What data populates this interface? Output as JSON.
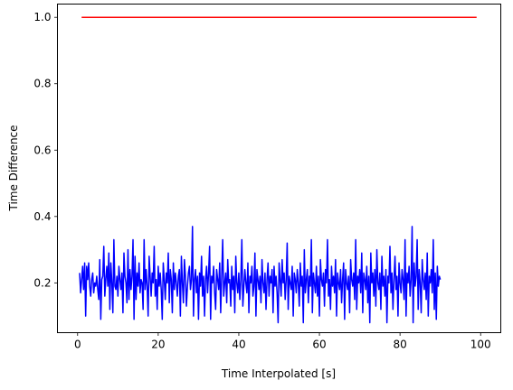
{
  "chart_data": {
    "type": "line",
    "title": "",
    "xlabel": "Time Interpolated [s]",
    "ylabel": "Time Difference",
    "xlim": [
      -5,
      105
    ],
    "ylim": [
      0.05,
      1.04
    ],
    "xticks": [
      0,
      20,
      40,
      60,
      80,
      100
    ],
    "xtick_labels": [
      "0",
      "20",
      "40",
      "60",
      "80",
      "100"
    ],
    "yticks": [
      0.2,
      0.4,
      0.6,
      0.8,
      1.0
    ],
    "ytick_labels": [
      "0.2",
      "0.4",
      "0.6",
      "0.8",
      "1.0"
    ],
    "grid": false,
    "series": [
      {
        "color": "#ff0000",
        "x": [
          1,
          99
        ],
        "y": [
          1.0,
          1.0
        ]
      },
      {
        "color": "#0000ff",
        "x_start": 0.5,
        "x_step": 0.25,
        "y": [
          0.23,
          0.17,
          0.21,
          0.25,
          0.18,
          0.26,
          0.1,
          0.25,
          0.21,
          0.26,
          0.19,
          0.16,
          0.21,
          0.23,
          0.17,
          0.2,
          0.19,
          0.22,
          0.18,
          0.15,
          0.27,
          0.09,
          0.21,
          0.22,
          0.31,
          0.16,
          0.21,
          0.25,
          0.19,
          0.29,
          0.12,
          0.26,
          0.2,
          0.11,
          0.33,
          0.19,
          0.18,
          0.22,
          0.16,
          0.25,
          0.21,
          0.18,
          0.23,
          0.11,
          0.29,
          0.22,
          0.2,
          0.14,
          0.3,
          0.15,
          0.24,
          0.18,
          0.22,
          0.33,
          0.09,
          0.28,
          0.15,
          0.23,
          0.19,
          0.26,
          0.17,
          0.21,
          0.2,
          0.12,
          0.33,
          0.18,
          0.24,
          0.19,
          0.1,
          0.28,
          0.22,
          0.16,
          0.23,
          0.2,
          0.31,
          0.16,
          0.21,
          0.12,
          0.25,
          0.19,
          0.23,
          0.18,
          0.09,
          0.26,
          0.21,
          0.15,
          0.23,
          0.2,
          0.29,
          0.14,
          0.24,
          0.21,
          0.11,
          0.26,
          0.18,
          0.23,
          0.2,
          0.16,
          0.22,
          0.24,
          0.1,
          0.28,
          0.2,
          0.14,
          0.27,
          0.22,
          0.13,
          0.19,
          0.23,
          0.25,
          0.18,
          0.21,
          0.37,
          0.1,
          0.21,
          0.24,
          0.17,
          0.22,
          0.09,
          0.23,
          0.19,
          0.28,
          0.16,
          0.22,
          0.1,
          0.21,
          0.25,
          0.17,
          0.23,
          0.31,
          0.09,
          0.22,
          0.2,
          0.25,
          0.17,
          0.12,
          0.24,
          0.21,
          0.18,
          0.26,
          0.11,
          0.22,
          0.33,
          0.16,
          0.2,
          0.23,
          0.14,
          0.27,
          0.2,
          0.21,
          0.13,
          0.25,
          0.18,
          0.22,
          0.11,
          0.28,
          0.2,
          0.17,
          0.23,
          0.15,
          0.21,
          0.33,
          0.13,
          0.19,
          0.24,
          0.2,
          0.17,
          0.26,
          0.11,
          0.22,
          0.2,
          0.25,
          0.16,
          0.19,
          0.29,
          0.1,
          0.24,
          0.21,
          0.18,
          0.22,
          0.14,
          0.27,
          0.2,
          0.17,
          0.23,
          0.12,
          0.21,
          0.26,
          0.16,
          0.22,
          0.2,
          0.24,
          0.11,
          0.25,
          0.19,
          0.22,
          0.17,
          0.08,
          0.26,
          0.21,
          0.16,
          0.27,
          0.2,
          0.23,
          0.15,
          0.21,
          0.32,
          0.12,
          0.22,
          0.2,
          0.18,
          0.25,
          0.1,
          0.23,
          0.21,
          0.17,
          0.24,
          0.2,
          0.13,
          0.26,
          0.19,
          0.22,
          0.08,
          0.3,
          0.17,
          0.21,
          0.24,
          0.14,
          0.22,
          0.19,
          0.33,
          0.11,
          0.23,
          0.2,
          0.17,
          0.25,
          0.16,
          0.22,
          0.1,
          0.27,
          0.21,
          0.19,
          0.23,
          0.13,
          0.24,
          0.2,
          0.33,
          0.16,
          0.21,
          0.12,
          0.25,
          0.19,
          0.22,
          0.17,
          0.27,
          0.1,
          0.23,
          0.2,
          0.18,
          0.24,
          0.14,
          0.21,
          0.26,
          0.09,
          0.24,
          0.2,
          0.18,
          0.22,
          0.11,
          0.27,
          0.21,
          0.19,
          0.23,
          0.15,
          0.33,
          0.12,
          0.22,
          0.2,
          0.24,
          0.17,
          0.29,
          0.11,
          0.23,
          0.21,
          0.18,
          0.25,
          0.14,
          0.22,
          0.08,
          0.29,
          0.2,
          0.23,
          0.16,
          0.24,
          0.13,
          0.3,
          0.2,
          0.18,
          0.23,
          0.12,
          0.28,
          0.19,
          0.22,
          0.16,
          0.24,
          0.08,
          0.22,
          0.2,
          0.31,
          0.17,
          0.23,
          0.12,
          0.21,
          0.28,
          0.18,
          0.22,
          0.1,
          0.26,
          0.2,
          0.17,
          0.24,
          0.21,
          0.15,
          0.33,
          0.1,
          0.23,
          0.2,
          0.25,
          0.16,
          0.21,
          0.37,
          0.08,
          0.26,
          0.19,
          0.22,
          0.33,
          0.12,
          0.24,
          0.2,
          0.11,
          0.27,
          0.21,
          0.18,
          0.23,
          0.15,
          0.29,
          0.1,
          0.22,
          0.2,
          0.24,
          0.17,
          0.33,
          0.12,
          0.23,
          0.09,
          0.25,
          0.19,
          0.22,
          0.21
        ]
      }
    ]
  }
}
